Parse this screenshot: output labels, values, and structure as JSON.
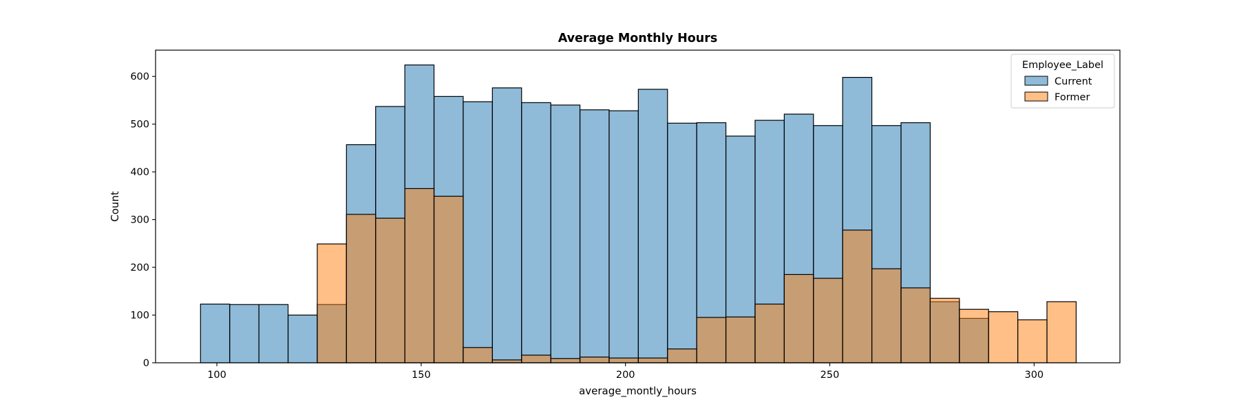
{
  "chart_data": {
    "type": "bar",
    "title": "Average Monthly Hours",
    "xlabel": "average_montly_hours",
    "ylabel": "Count",
    "xlim": [
      85,
      321
    ],
    "ylim": [
      0,
      655
    ],
    "x_ticks": [
      100,
      150,
      200,
      250,
      300
    ],
    "y_ticks": [
      0,
      100,
      200,
      300,
      400,
      500,
      600
    ],
    "grid": false,
    "legend": {
      "title": "Employee_Label",
      "placement": "top-right"
    },
    "bin_start": 96,
    "bin_width": 7.143,
    "series": [
      {
        "name": "Current",
        "color": "#1f77b4",
        "values": [
          123,
          122,
          122,
          100,
          122,
          457,
          537,
          624,
          558,
          547,
          576,
          545,
          540,
          530,
          528,
          573,
          502,
          503,
          475,
          508,
          521,
          497,
          598,
          497,
          503,
          128,
          93,
          0,
          0,
          0
        ]
      },
      {
        "name": "Former",
        "color": "#ff7f0e",
        "values": [
          0,
          0,
          0,
          0,
          249,
          311,
          303,
          365,
          349,
          32,
          6,
          16,
          9,
          12,
          10,
          10,
          29,
          95,
          96,
          123,
          185,
          177,
          278,
          197,
          157,
          135,
          112,
          107,
          90,
          128
        ]
      }
    ]
  }
}
